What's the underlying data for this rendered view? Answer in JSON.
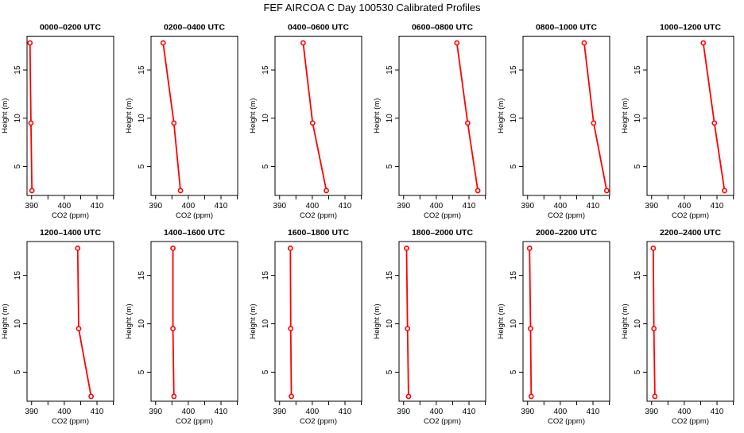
{
  "title": "FEF AIRCOA C  Day 100530  Calibrated Profiles",
  "chart_data": {
    "type": "line",
    "layout": "2x6 small multiples",
    "xlabel": "CO2 (ppm)",
    "ylabel": "Height (m)",
    "xlim": [
      388.6,
      415.1
    ],
    "ylim": [
      2.0,
      18.5
    ],
    "xticks": [
      390,
      395,
      400,
      405,
      410,
      415
    ],
    "xtick_labels": [
      "390",
      "400",
      "410"
    ],
    "yticks": [
      5,
      10,
      15
    ],
    "ytick_labels": [
      "5",
      "10",
      "15"
    ],
    "heights": [
      17.8,
      9.5,
      2.5
    ],
    "colors": {
      "series": "#ff0000",
      "axes": "#000000"
    },
    "panels": [
      {
        "title": "0000–0200 UTC",
        "co2": [
          389.5,
          389.8,
          390.1
        ]
      },
      {
        "title": "0200–0400 UTC",
        "co2": [
          392.3,
          395.6,
          397.6
        ]
      },
      {
        "title": "0400–0600 UTC",
        "co2": [
          397.2,
          400.1,
          404.3
        ]
      },
      {
        "title": "0600–0800 UTC",
        "co2": [
          406.3,
          409.6,
          412.7
        ]
      },
      {
        "title": "0800–1000 UTC",
        "co2": [
          407.3,
          410.2,
          414.2
        ]
      },
      {
        "title": "1000–1200 UTC",
        "co2": [
          405.8,
          409.2,
          412.3
        ]
      },
      {
        "title": "1200–1400 UTC",
        "co2": [
          404.1,
          404.4,
          408.2
        ]
      },
      {
        "title": "1400–1600 UTC",
        "co2": [
          395.3,
          395.3,
          395.6
        ]
      },
      {
        "title": "1600–1800 UTC",
        "co2": [
          393.3,
          393.4,
          393.6
        ]
      },
      {
        "title": "1800–2000 UTC",
        "co2": [
          390.9,
          391.2,
          391.5
        ]
      },
      {
        "title": "2000–2200 UTC",
        "co2": [
          390.6,
          390.9,
          391.1
        ]
      },
      {
        "title": "2200–2400 UTC",
        "co2": [
          390.5,
          390.7,
          391.0
        ]
      }
    ]
  }
}
